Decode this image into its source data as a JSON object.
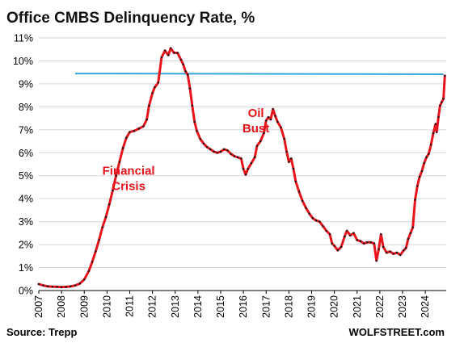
{
  "chart_data": {
    "type": "line",
    "title": "Office CMBS Delinquency Rate, %",
    "source": "Source: Trepp",
    "brand": "WOLFSTREET.com",
    "annotations": [
      {
        "lines": [
          "Financial",
          "Crisis"
        ],
        "x": 2010.95,
        "y": 5.05,
        "color": "#e8141b"
      },
      {
        "lines": [
          "Oil",
          "Bust"
        ],
        "x": 2016.55,
        "y": 7.55,
        "color": "#e8141b"
      }
    ],
    "x_ticks": [
      "2007",
      "2008",
      "2009",
      "2010",
      "2011",
      "2012",
      "2013",
      "2014",
      "2015",
      "2016",
      "2017",
      "2018",
      "2019",
      "2020",
      "2021",
      "2022",
      "2023",
      "2024"
    ],
    "y_ticks": [
      "0%",
      "1%",
      "2%",
      "3%",
      "4%",
      "5%",
      "6%",
      "7%",
      "8%",
      "9%",
      "10%",
      "11%"
    ],
    "xlim": [
      2007,
      2024.92
    ],
    "ylim": [
      0,
      11
    ],
    "grid": "horizontal",
    "colors": {
      "series_line": "#e8141b",
      "series_markers": "#111111",
      "reference_line": "#2fa6de",
      "grid": "#d6d6d6",
      "title": "#111111"
    },
    "reference_line": {
      "x": [
        2008.6,
        2024.8
      ],
      "y": [
        9.45,
        9.42
      ]
    },
    "series": [
      {
        "points": [
          [
            2007.0,
            0.28
          ],
          [
            2007.2,
            0.22
          ],
          [
            2007.4,
            0.18
          ],
          [
            2007.6,
            0.17
          ],
          [
            2007.8,
            0.16
          ],
          [
            2008.0,
            0.15
          ],
          [
            2008.2,
            0.16
          ],
          [
            2008.4,
            0.18
          ],
          [
            2008.6,
            0.22
          ],
          [
            2008.8,
            0.3
          ],
          [
            2009.0,
            0.48
          ],
          [
            2009.2,
            0.85
          ],
          [
            2009.35,
            1.25
          ],
          [
            2009.5,
            1.7
          ],
          [
            2009.65,
            2.2
          ],
          [
            2009.8,
            2.75
          ],
          [
            2009.95,
            3.2
          ],
          [
            2010.1,
            3.75
          ],
          [
            2010.25,
            4.35
          ],
          [
            2010.4,
            5.0
          ],
          [
            2010.55,
            5.6
          ],
          [
            2010.7,
            6.2
          ],
          [
            2010.85,
            6.65
          ],
          [
            2011.0,
            6.9
          ],
          [
            2011.2,
            6.95
          ],
          [
            2011.4,
            7.05
          ],
          [
            2011.6,
            7.15
          ],
          [
            2011.75,
            7.45
          ],
          [
            2011.85,
            8.05
          ],
          [
            2012.0,
            8.6
          ],
          [
            2012.1,
            8.85
          ],
          [
            2012.25,
            9.05
          ],
          [
            2012.4,
            10.15
          ],
          [
            2012.55,
            10.45
          ],
          [
            2012.7,
            10.25
          ],
          [
            2012.8,
            10.55
          ],
          [
            2012.95,
            10.35
          ],
          [
            2013.1,
            10.35
          ],
          [
            2013.25,
            10.05
          ],
          [
            2013.35,
            9.85
          ],
          [
            2013.45,
            9.55
          ],
          [
            2013.55,
            9.4
          ],
          [
            2013.65,
            8.8
          ],
          [
            2013.75,
            8.05
          ],
          [
            2013.85,
            7.35
          ],
          [
            2013.95,
            6.95
          ],
          [
            2014.1,
            6.6
          ],
          [
            2014.25,
            6.4
          ],
          [
            2014.4,
            6.25
          ],
          [
            2014.55,
            6.15
          ],
          [
            2014.7,
            6.05
          ],
          [
            2014.85,
            6.0
          ],
          [
            2015.0,
            6.05
          ],
          [
            2015.15,
            6.15
          ],
          [
            2015.3,
            6.1
          ],
          [
            2015.45,
            5.95
          ],
          [
            2015.6,
            5.85
          ],
          [
            2015.75,
            5.8
          ],
          [
            2015.9,
            5.75
          ],
          [
            2016.0,
            5.3
          ],
          [
            2016.1,
            5.05
          ],
          [
            2016.2,
            5.3
          ],
          [
            2016.35,
            5.55
          ],
          [
            2016.5,
            5.8
          ],
          [
            2016.6,
            6.3
          ],
          [
            2016.75,
            6.5
          ],
          [
            2016.9,
            6.85
          ],
          [
            2017.0,
            7.4
          ],
          [
            2017.1,
            7.55
          ],
          [
            2017.2,
            7.45
          ],
          [
            2017.3,
            7.9
          ],
          [
            2017.4,
            7.6
          ],
          [
            2017.5,
            7.35
          ],
          [
            2017.65,
            7.1
          ],
          [
            2017.8,
            6.6
          ],
          [
            2017.9,
            6.05
          ],
          [
            2018.0,
            5.6
          ],
          [
            2018.1,
            5.75
          ],
          [
            2018.2,
            5.3
          ],
          [
            2018.3,
            4.75
          ],
          [
            2018.45,
            4.3
          ],
          [
            2018.6,
            3.9
          ],
          [
            2018.75,
            3.6
          ],
          [
            2018.9,
            3.35
          ],
          [
            2019.05,
            3.15
          ],
          [
            2019.2,
            3.05
          ],
          [
            2019.35,
            3.0
          ],
          [
            2019.5,
            2.8
          ],
          [
            2019.65,
            2.6
          ],
          [
            2019.8,
            2.45
          ],
          [
            2019.9,
            2.05
          ],
          [
            2020.0,
            1.95
          ],
          [
            2020.15,
            1.75
          ],
          [
            2020.3,
            1.9
          ],
          [
            2020.45,
            2.35
          ],
          [
            2020.55,
            2.6
          ],
          [
            2020.7,
            2.4
          ],
          [
            2020.85,
            2.5
          ],
          [
            2021.0,
            2.2
          ],
          [
            2021.15,
            2.15
          ],
          [
            2021.3,
            2.05
          ],
          [
            2021.45,
            2.1
          ],
          [
            2021.6,
            2.1
          ],
          [
            2021.75,
            2.05
          ],
          [
            2021.85,
            1.3
          ],
          [
            2021.95,
            1.8
          ],
          [
            2022.05,
            2.45
          ],
          [
            2022.15,
            1.9
          ],
          [
            2022.3,
            1.65
          ],
          [
            2022.45,
            1.7
          ],
          [
            2022.6,
            1.6
          ],
          [
            2022.75,
            1.65
          ],
          [
            2022.9,
            1.55
          ],
          [
            2023.05,
            1.75
          ],
          [
            2023.15,
            1.85
          ],
          [
            2023.25,
            2.25
          ],
          [
            2023.35,
            2.5
          ],
          [
            2023.45,
            2.75
          ],
          [
            2023.55,
            3.95
          ],
          [
            2023.65,
            4.55
          ],
          [
            2023.75,
            4.95
          ],
          [
            2023.85,
            5.2
          ],
          [
            2023.95,
            5.55
          ],
          [
            2024.05,
            5.8
          ],
          [
            2024.15,
            5.95
          ],
          [
            2024.25,
            6.35
          ],
          [
            2024.35,
            6.85
          ],
          [
            2024.45,
            7.25
          ],
          [
            2024.5,
            6.9
          ],
          [
            2024.58,
            7.55
          ],
          [
            2024.65,
            8.05
          ],
          [
            2024.72,
            8.2
          ],
          [
            2024.8,
            8.35
          ],
          [
            2024.86,
            9.35
          ]
        ]
      }
    ]
  }
}
